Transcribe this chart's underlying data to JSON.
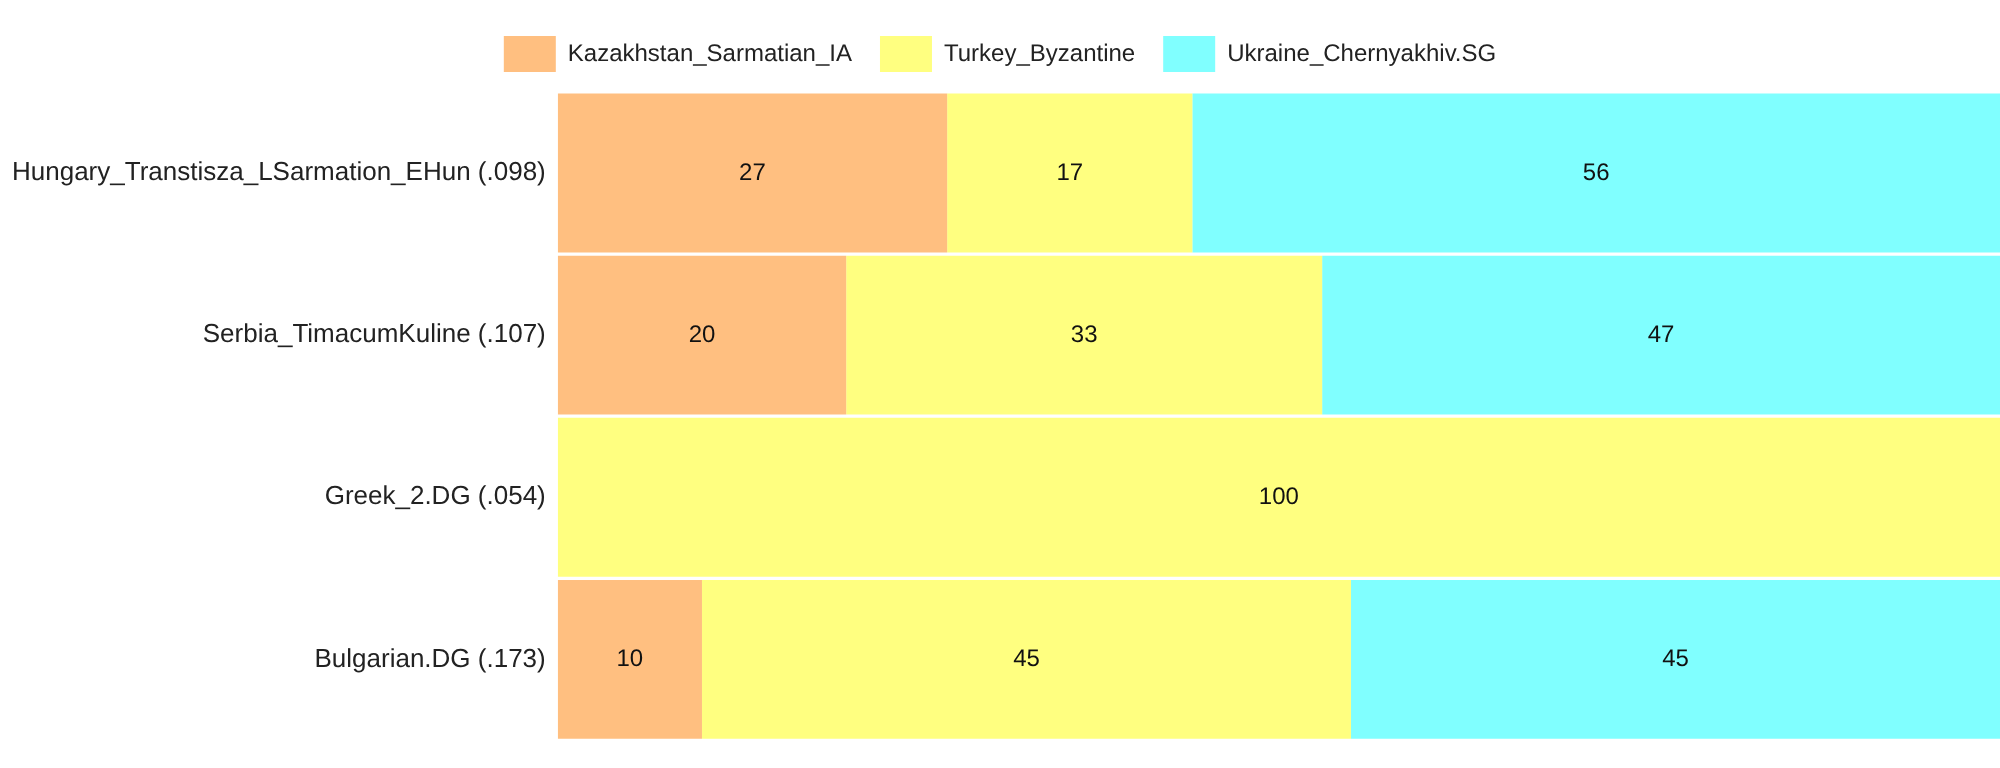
{
  "chart_data": {
    "type": "bar",
    "orientation": "horizontal",
    "stacked": true,
    "categories": [
      "Hungary_Transtisza_LSarmation_EHun (.098)",
      "Serbia_TimacumKuline (.107)",
      "Greek_2.DG (.054)",
      "Bulgarian.DG (.173)"
    ],
    "series": [
      {
        "name": "Kazakhstan_Sarmatian_IA",
        "color": "#ffbf80",
        "values": [
          27,
          20,
          null,
          10
        ]
      },
      {
        "name": "Turkey_Byzantine",
        "color": "#ffff80",
        "values": [
          17,
          33,
          100,
          45
        ]
      },
      {
        "name": "Ukraine_Chernyakhiv.SG",
        "color": "#80ffff",
        "values": [
          56,
          47,
          null,
          45
        ]
      }
    ],
    "data_labels": true,
    "legend": "top",
    "grid": false,
    "tick_labels": "y"
  }
}
